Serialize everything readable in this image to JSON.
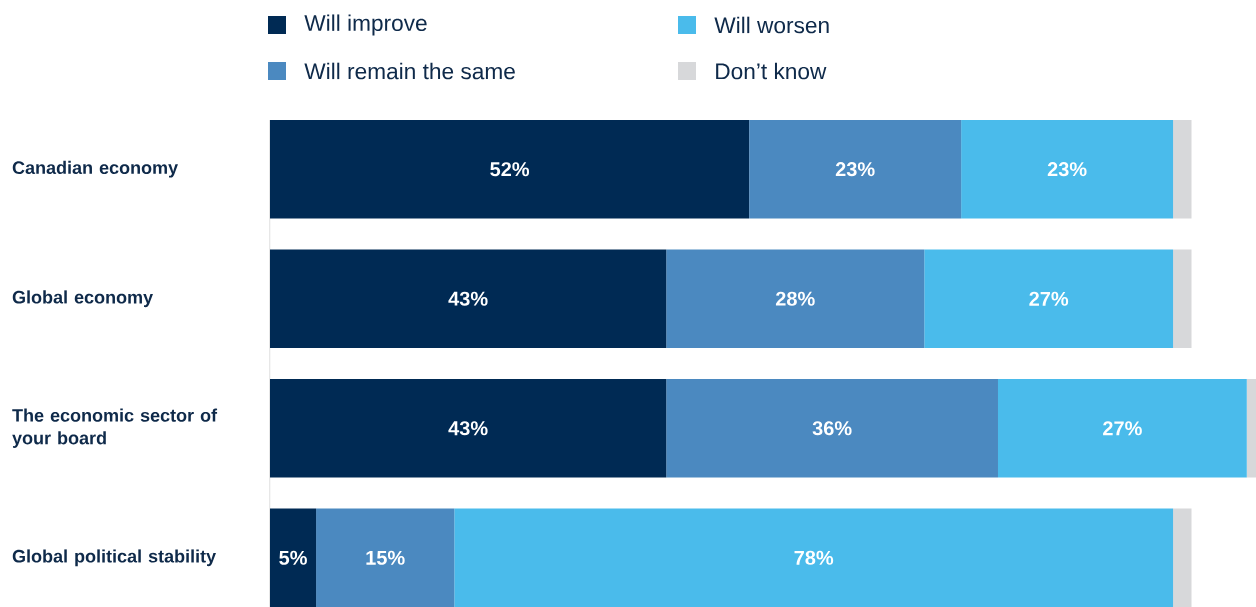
{
  "chart_data": {
    "type": "bar",
    "orientation": "horizontal",
    "stacked": true,
    "legend": "top",
    "categories": [
      "Canadian economy",
      "Global economy",
      "The economic sector of your board",
      "Global political stability"
    ],
    "series": [
      {
        "name": "Will improve",
        "color": "#002a54",
        "values": [
          52,
          43,
          43,
          5
        ],
        "value_labels": [
          "52%",
          "43%",
          "43%",
          "5%"
        ]
      },
      {
        "name": "Will remain the same",
        "color": "#4b89c0",
        "values": [
          23,
          28,
          36,
          15
        ],
        "value_labels": [
          "23%",
          "28%",
          "36%",
          "15%"
        ]
      },
      {
        "name": "Will worsen",
        "color": "#4abbeb",
        "values": [
          23,
          27,
          27,
          78
        ],
        "value_labels": [
          "23%",
          "27%",
          "27%",
          "78%"
        ]
      },
      {
        "name": "Don’t know",
        "color": "#d7d8da",
        "values": [
          2,
          2,
          1,
          2
        ],
        "value_labels": [
          null,
          null,
          null,
          null
        ]
      }
    ]
  }
}
